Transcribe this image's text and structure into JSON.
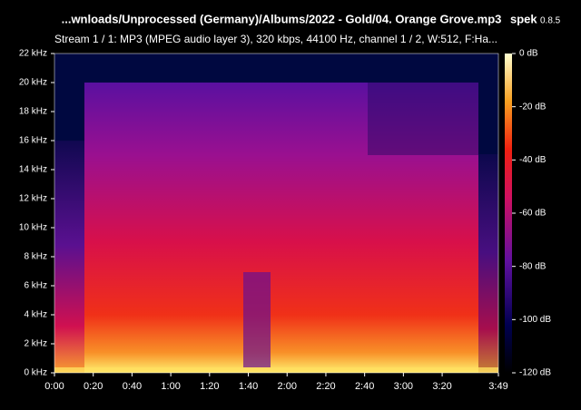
{
  "chart_data": {
    "type": "spectrogram",
    "title": "...wnloads/Unprocessed (Germany)/Albums/2022 - Gold/04. Orange Grove.mp3",
    "app": "spek",
    "version": "0.8.5",
    "subtitle": "Stream 1 / 1: MP3 (MPEG audio layer 3), 320 kbps, 44100 Hz, channel 1 / 2, W:512, F:Ha...",
    "xlim": [
      0,
      229
    ],
    "xticks": [
      {
        "value": 0,
        "label": "0:00"
      },
      {
        "value": 20,
        "label": "0:20"
      },
      {
        "value": 40,
        "label": "0:40"
      },
      {
        "value": 60,
        "label": "1:00"
      },
      {
        "value": 80,
        "label": "1:20"
      },
      {
        "value": 100,
        "label": "1:40"
      },
      {
        "value": 120,
        "label": "2:00"
      },
      {
        "value": 140,
        "label": "2:20"
      },
      {
        "value": 160,
        "label": "2:40"
      },
      {
        "value": 180,
        "label": "3:00"
      },
      {
        "value": 200,
        "label": "3:20"
      },
      {
        "value": 229,
        "label": "3:49"
      }
    ],
    "ylim": [
      0,
      22
    ],
    "yticks": [
      {
        "value": 0,
        "label": "0 kHz"
      },
      {
        "value": 2,
        "label": "2 kHz"
      },
      {
        "value": 4,
        "label": "4 kHz"
      },
      {
        "value": 6,
        "label": "6 kHz"
      },
      {
        "value": 8,
        "label": "8 kHz"
      },
      {
        "value": 10,
        "label": "10 kHz"
      },
      {
        "value": 12,
        "label": "12 kHz"
      },
      {
        "value": 14,
        "label": "14 kHz"
      },
      {
        "value": 16,
        "label": "16 kHz"
      },
      {
        "value": 18,
        "label": "18 kHz"
      },
      {
        "value": 20,
        "label": "20 kHz"
      },
      {
        "value": 22,
        "label": "22 kHz"
      }
    ],
    "zlim": [
      -120,
      0
    ],
    "zticks": [
      {
        "value": 0,
        "label": "0 dB"
      },
      {
        "value": -20,
        "label": "-20 dB"
      },
      {
        "value": -40,
        "label": "-40 dB"
      },
      {
        "value": -60,
        "label": "-60 dB"
      },
      {
        "value": -80,
        "label": "-80 dB"
      },
      {
        "value": -100,
        "label": "-100 dB"
      },
      {
        "value": -120,
        "label": "-120 dB"
      }
    ]
  }
}
